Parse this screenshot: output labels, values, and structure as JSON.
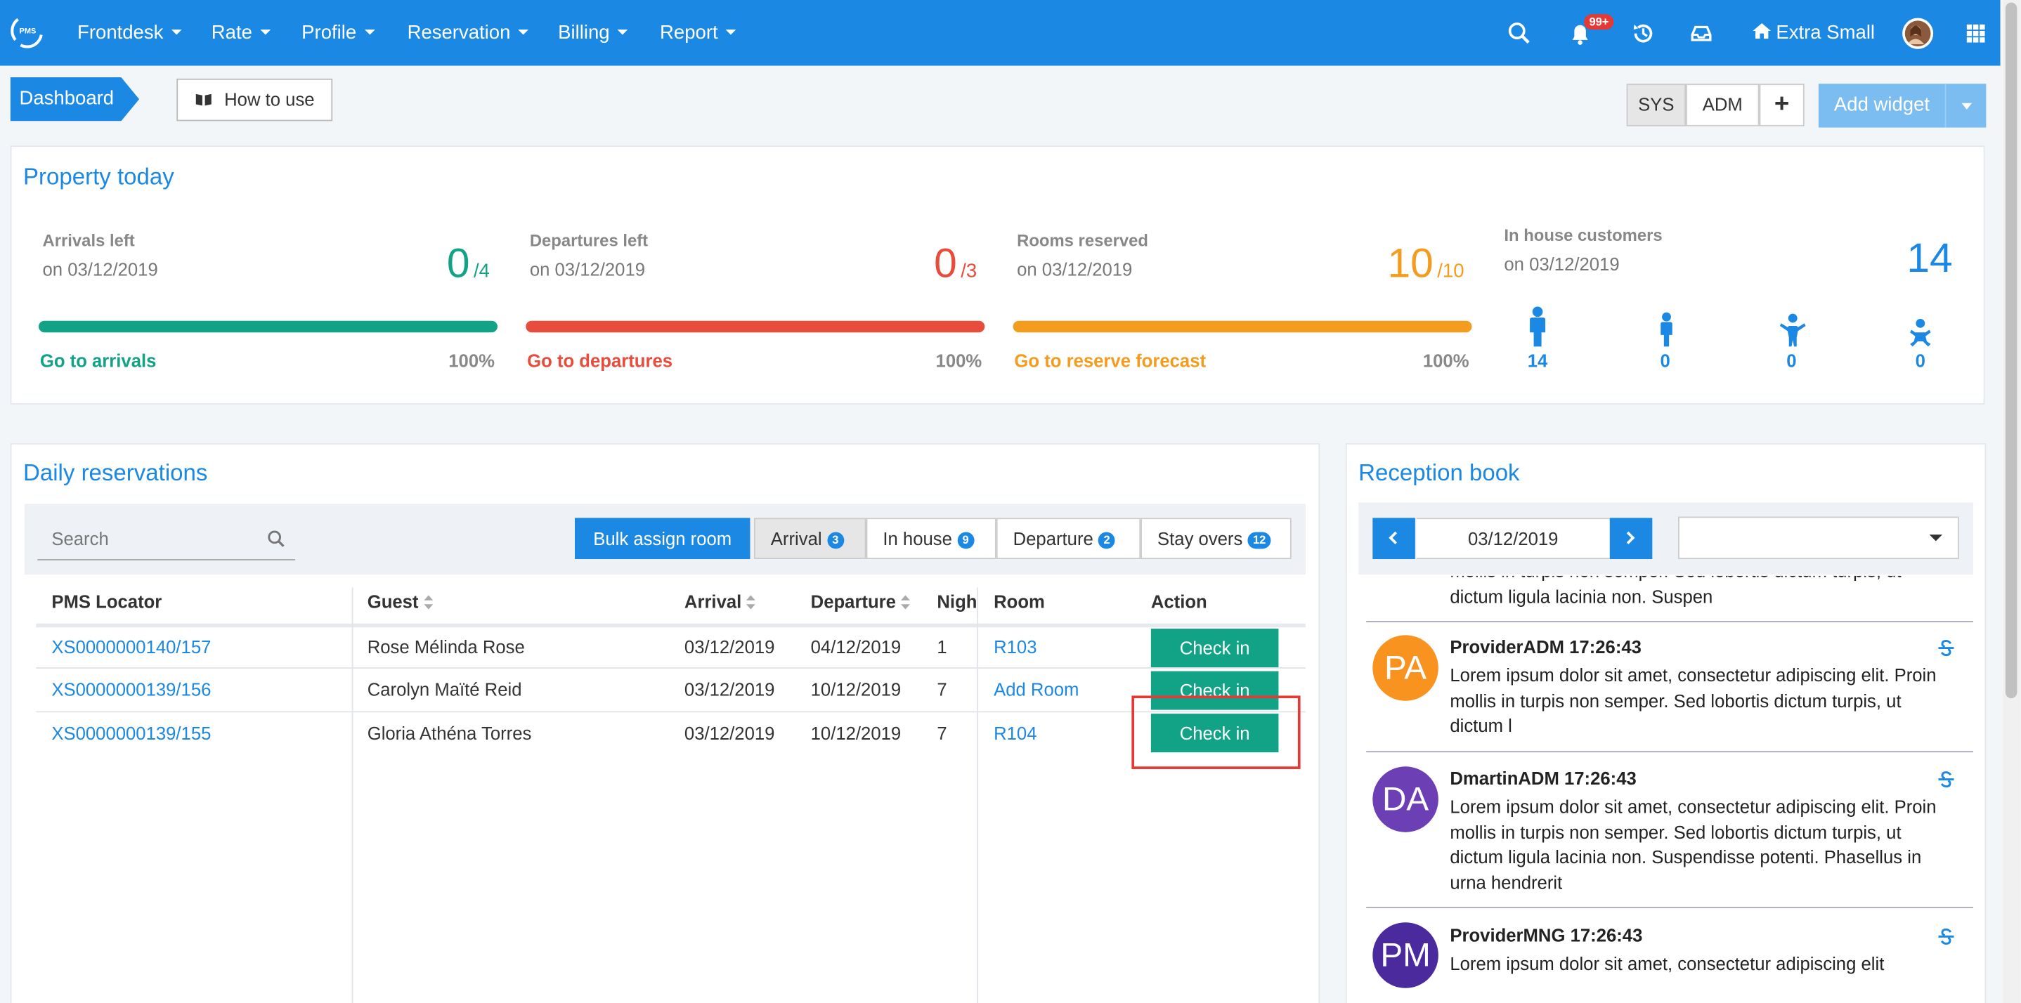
{
  "nav": {
    "items": [
      "Frontdesk",
      "Rate",
      "Profile",
      "Reservation",
      "Billing",
      "Report"
    ],
    "notification_badge": "99+",
    "property_name": "Extra Small"
  },
  "toolbar": {
    "breadcrumb": "Dashboard",
    "how_to_use": "How to use",
    "sys": "SYS",
    "adm": "ADM",
    "plus": "+",
    "add_widget": "Add widget"
  },
  "property_today": {
    "title": "Property today",
    "arrivals": {
      "label": "Arrivals left",
      "date": "on 03/12/2019",
      "value": "0",
      "total": "/4",
      "link": "Go to arrivals",
      "pct": "100%",
      "fill": 1.0,
      "color": "#12a386"
    },
    "departures": {
      "label": "Departures left",
      "date": "on 03/12/2019",
      "value": "0",
      "total": "/3",
      "link": "Go to departures",
      "pct": "100%",
      "fill": 1.0,
      "color": "#e74c3c"
    },
    "rooms": {
      "label": "Rooms reserved",
      "date": "on 03/12/2019",
      "value": "10",
      "total": "/10",
      "link": "Go to reserve forecast",
      "pct": "100%",
      "fill": 1.0,
      "color": "#f39c1f"
    },
    "in_house": {
      "label": "In house customers",
      "date": "on 03/12/2019",
      "value": "14",
      "counts": [
        "14",
        "0",
        "0",
        "0"
      ],
      "color": "#1b88e3"
    }
  },
  "daily": {
    "title": "Daily reservations",
    "search_placeholder": "Search",
    "bulk_assign": "Bulk assign room",
    "tabs": [
      {
        "label": "Arrival",
        "count": "3"
      },
      {
        "label": "In house",
        "count": "9"
      },
      {
        "label": "Departure",
        "count": "2"
      },
      {
        "label": "Stay overs",
        "count": "12"
      }
    ],
    "columns": [
      "PMS Locator",
      "Guest",
      "Arrival",
      "Departure",
      "Nigh",
      "Room",
      "Action"
    ],
    "rows": [
      {
        "locator": "XS0000000140/157",
        "guest": "Rose Mélinda Rose",
        "arrival": "03/12/2019",
        "departure": "04/12/2019",
        "nights": "1",
        "room": "R103",
        "action": "Check in"
      },
      {
        "locator": "XS0000000139/156",
        "guest": "Carolyn Maïté Reid",
        "arrival": "03/12/2019",
        "departure": "10/12/2019",
        "nights": "7",
        "room": "Add Room",
        "action": "Check in"
      },
      {
        "locator": "XS0000000139/155",
        "guest": "Gloria Athéna Torres",
        "arrival": "03/12/2019",
        "departure": "10/12/2019",
        "nights": "7",
        "room": "R104",
        "action": "Check in"
      }
    ]
  },
  "reception": {
    "title": "Reception book",
    "date": "03/12/2019",
    "partial_top_line1": "mollis in turpis non semper. Sed lobortis dictum turpis, ut",
    "partial_top_line2": "dictum ligula lacinia non. Suspen",
    "messages": [
      {
        "initials": "PA",
        "avatar_color": "#f7931e",
        "author": "ProviderADM 17:26:43",
        "lines": [
          "Lorem ipsum dolor sit amet, consectetur adipiscing elit. Proin",
          "mollis in turpis non semper. Sed lobortis dictum turpis, ut",
          "dictum l"
        ]
      },
      {
        "initials": "DA",
        "avatar_color": "#6c3fb5",
        "author": "DmartinADM 17:26:43",
        "lines": [
          "Lorem ipsum dolor sit amet, consectetur adipiscing elit. Proin",
          "mollis in turpis non semper. Sed lobortis dictum turpis, ut",
          "dictum ligula lacinia non. Suspendisse potenti. Phasellus in",
          "urna hendrerit"
        ]
      },
      {
        "initials": "PM",
        "avatar_color": "#4a2a9c",
        "author": "ProviderMNG 17:26:43",
        "lines": [
          "Lorem ipsum dolor sit amet, consectetur adipiscing elit"
        ]
      }
    ]
  }
}
